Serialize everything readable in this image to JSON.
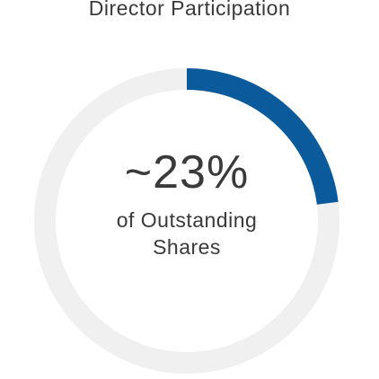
{
  "chart_data": {
    "type": "donut",
    "title": "Director Participation",
    "values": [
      23
    ],
    "value_labels": [
      "~23%"
    ],
    "color": "#0a5a9c",
    "track_color": "#f0f0f0",
    "annotation": "of Outstanding Shares"
  }
}
